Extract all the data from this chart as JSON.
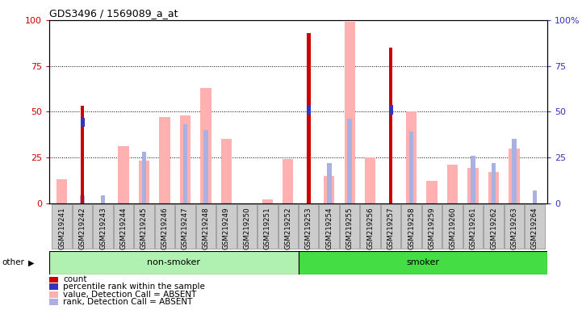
{
  "title": "GDS3496 / 1569089_a_at",
  "samples": [
    "GSM219241",
    "GSM219242",
    "GSM219243",
    "GSM219244",
    "GSM219245",
    "GSM219246",
    "GSM219247",
    "GSM219248",
    "GSM219249",
    "GSM219250",
    "GSM219251",
    "GSM219252",
    "GSM219253",
    "GSM219254",
    "GSM219255",
    "GSM219256",
    "GSM219257",
    "GSM219258",
    "GSM219259",
    "GSM219260",
    "GSM219261",
    "GSM219262",
    "GSM219263",
    "GSM219264"
  ],
  "count": [
    0,
    53,
    0,
    0,
    0,
    0,
    0,
    0,
    0,
    0,
    0,
    0,
    93,
    0,
    0,
    0,
    85,
    0,
    0,
    0,
    0,
    0,
    0,
    0
  ],
  "percentile_rank": [
    0,
    44,
    0,
    0,
    0,
    0,
    0,
    0,
    0,
    0,
    0,
    0,
    51,
    0,
    0,
    0,
    51,
    0,
    0,
    0,
    0,
    0,
    0,
    0
  ],
  "absent_value": [
    13,
    0,
    0,
    31,
    23,
    47,
    48,
    63,
    35,
    0,
    2,
    24,
    0,
    15,
    99,
    25,
    0,
    50,
    12,
    21,
    19,
    17,
    30,
    0
  ],
  "absent_rank": [
    0,
    4,
    4,
    0,
    28,
    0,
    43,
    40,
    0,
    0,
    0,
    0,
    0,
    22,
    46,
    0,
    0,
    39,
    0,
    0,
    26,
    22,
    35,
    7
  ],
  "yticks": [
    0,
    25,
    50,
    75,
    100
  ],
  "right_ytick_labels": [
    "0",
    "25",
    "50",
    "75",
    "100%"
  ],
  "count_color": "#cc0000",
  "percentile_color": "#3333bb",
  "absent_value_color": "#ffb0b0",
  "absent_rank_color": "#aab0df",
  "nonsmoker_color": "#b0f0b0",
  "smoker_color": "#44dd44",
  "bg_color": "#cccccc",
  "plot_bg": "#ffffff",
  "non_smoker_count": 12,
  "smoker_count": 12,
  "non_smoker_label": "non-smoker",
  "smoker_label": "smoker",
  "legend_items": [
    {
      "color": "#cc0000",
      "label": "count"
    },
    {
      "color": "#3333bb",
      "label": "percentile rank within the sample"
    },
    {
      "color": "#ffb0b0",
      "label": "value, Detection Call = ABSENT"
    },
    {
      "color": "#aab0df",
      "label": "rank, Detection Call = ABSENT"
    }
  ]
}
